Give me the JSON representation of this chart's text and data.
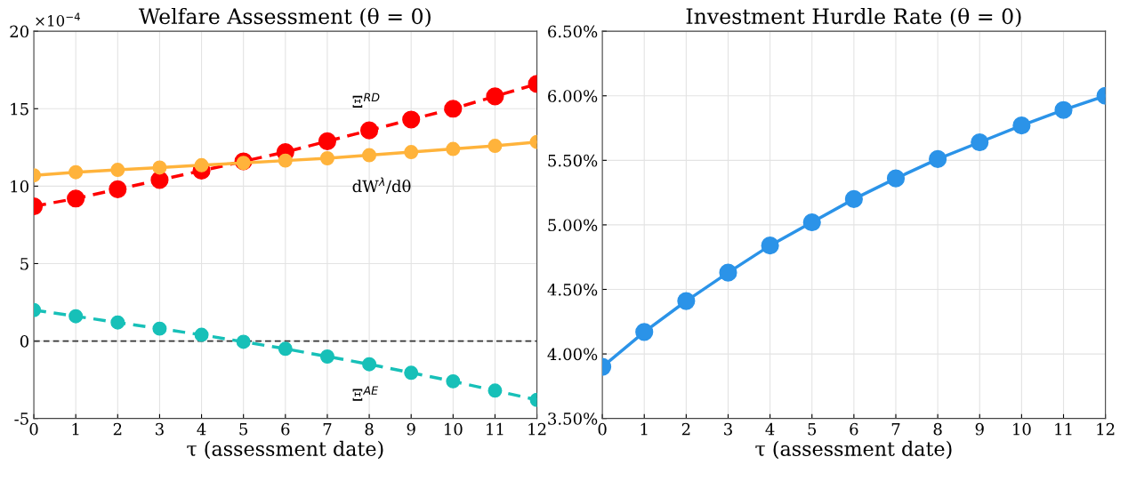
{
  "chart_data": [
    {
      "type": "line",
      "title": "Welfare Assessment (θ = 0)",
      "xlabel": "τ (assessment date)",
      "x": [
        0,
        1,
        2,
        3,
        4,
        5,
        6,
        7,
        8,
        9,
        10,
        11,
        12
      ],
      "series": [
        {
          "name": "Ξ$^{RD}$",
          "color": "#ff0000",
          "line_style": "dashed",
          "values": [
            8.7,
            9.2,
            9.8,
            10.4,
            11.0,
            11.6,
            12.2,
            12.9,
            13.6,
            14.3,
            15.0,
            15.8,
            16.6
          ]
        },
        {
          "name": "dW$^{λ}$/dθ",
          "color": "#ffb33b",
          "line_style": "solid",
          "values": [
            10.7,
            10.9,
            11.05,
            11.2,
            11.35,
            11.5,
            11.65,
            11.8,
            12.0,
            12.2,
            12.4,
            12.6,
            12.85
          ]
        },
        {
          "name": "Ξ$^{AE}$",
          "color": "#17c0b8",
          "line_style": "dashed",
          "values": [
            2.0,
            1.6,
            1.2,
            0.8,
            0.4,
            -0.05,
            -0.5,
            -1.0,
            -1.5,
            -2.05,
            -2.6,
            -3.2,
            -3.8
          ]
        }
      ],
      "marker": "circle",
      "grid": true,
      "xlim": [
        0,
        12
      ],
      "xticks": [
        0,
        1,
        2,
        3,
        4,
        5,
        6,
        7,
        8,
        9,
        10,
        11,
        12
      ],
      "ylim": [
        -5,
        20
      ],
      "yticks": [
        -5,
        0,
        5,
        10,
        15,
        20
      ],
      "ref_lines": [
        {
          "axis": "y",
          "value": 0,
          "color": "#333333",
          "line_style": "dashed"
        }
      ],
      "annotations": [
        "×10$^{−4}$"
      ]
    },
    {
      "type": "line",
      "title": "Investment Hurdle Rate (θ = 0)",
      "xlabel": "τ (assessment date)",
      "x": [
        0,
        1,
        2,
        3,
        4,
        5,
        6,
        7,
        8,
        9,
        10,
        11,
        12
      ],
      "series": [
        {
          "color": "#2b93e8",
          "line_style": "solid",
          "values": [
            3.9,
            4.17,
            4.41,
            4.63,
            4.84,
            5.02,
            5.2,
            5.36,
            5.51,
            5.64,
            5.77,
            5.89,
            6.0
          ]
        }
      ],
      "marker": "circle",
      "grid": true,
      "xlim": [
        0,
        12
      ],
      "xticks": [
        0,
        1,
        2,
        3,
        4,
        5,
        6,
        7,
        8,
        9,
        10,
        11,
        12
      ],
      "ylim": [
        3.5,
        6.5
      ],
      "yticks": [
        {
          "value": 3.5,
          "label": "3.50%"
        },
        {
          "value": 4.0,
          "label": "4.00%"
        },
        {
          "value": 4.5,
          "label": "4.50%"
        },
        {
          "value": 5.0,
          "label": "5.00%"
        },
        {
          "value": 5.5,
          "label": "5.50%"
        },
        {
          "value": 6.0,
          "label": "6.00%"
        },
        {
          "value": 6.5,
          "label": "6.50%"
        }
      ]
    }
  ]
}
